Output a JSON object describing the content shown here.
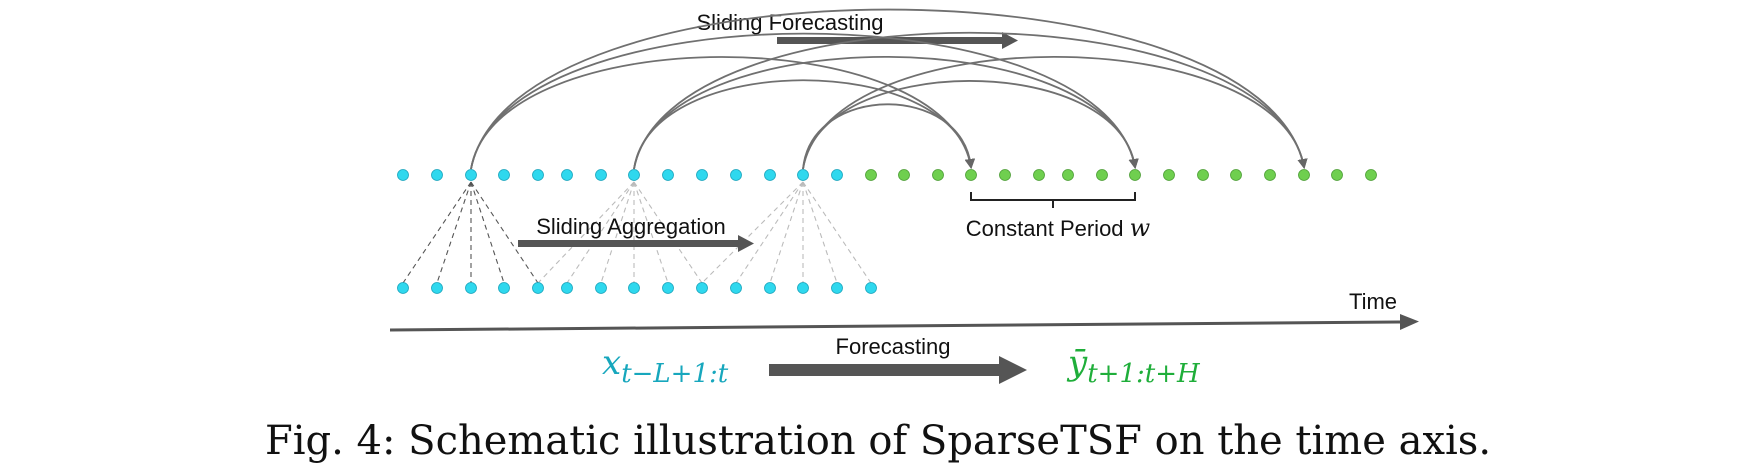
{
  "labels": {
    "sliding_forecasting": "Sliding Forecasting",
    "sliding_aggregation": "Sliding Aggregation",
    "constant_period": "Constant Period ",
    "period_symbol": "w",
    "time": "Time",
    "forecasting": "Forecasting",
    "input_symbol": "x",
    "input_subscript": "t−L+1:t",
    "output_symbol": "ȳ",
    "output_subscript": "t+1:t+H"
  },
  "caption": "Fig. 4: Schematic illustration of SparseTSF on the time axis.",
  "colors": {
    "input_dot": "#2fd8ee",
    "output_dot": "#6fcf4f",
    "input_text": "#17a7bd",
    "output_text": "#1fae3a",
    "arrow": "#555555"
  }
}
